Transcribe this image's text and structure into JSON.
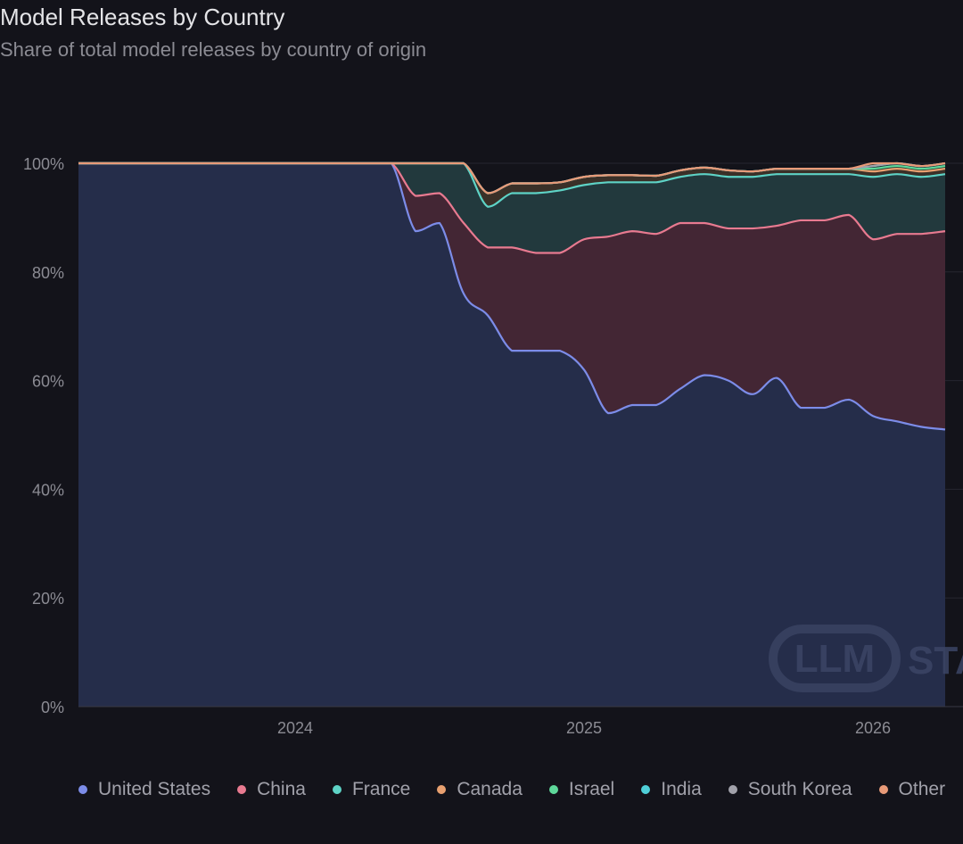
{
  "title": "Model Releases by Country",
  "subtitle": "Share of total model releases by country of origin",
  "watermark": {
    "text_a": "LLM",
    "text_b": "STATS"
  },
  "chart_data": {
    "type": "area",
    "stacked": true,
    "normalized": true,
    "title": "Model Releases by Country",
    "subtitle": "Share of total model releases by country of origin",
    "x": [
      "2023-04",
      "2023-05",
      "2023-06",
      "2023-07",
      "2023-08",
      "2023-09",
      "2023-10",
      "2023-11",
      "2023-12",
      "2024-01",
      "2024-02",
      "2024-03",
      "2024-04",
      "2024-05",
      "2024-06",
      "2024-07",
      "2024-08",
      "2024-09",
      "2024-10",
      "2024-11",
      "2024-12",
      "2025-01",
      "2025-02",
      "2025-03",
      "2025-04",
      "2025-05",
      "2025-06",
      "2025-07",
      "2025-08",
      "2025-09",
      "2025-10",
      "2025-11",
      "2025-12",
      "2026-01",
      "2026-02",
      "2026-03",
      "2026-04"
    ],
    "xticks": [
      "2024",
      "2025",
      "2026"
    ],
    "yticks": [
      "0%",
      "20%",
      "40%",
      "60%",
      "80%",
      "100%"
    ],
    "ylim": [
      0,
      100
    ],
    "grid": true,
    "legend_position": "bottom",
    "series": [
      {
        "name": "United States",
        "color": "#7c8ce8",
        "fill": "#252d4a",
        "values": [
          100,
          100,
          100,
          100,
          100,
          100,
          100,
          100,
          100,
          100,
          100,
          100,
          100,
          100,
          87.5,
          89,
          76,
          72,
          65.5,
          65.5,
          65.5,
          62,
          54,
          55.5,
          55.5,
          58.5,
          61,
          60,
          57.5,
          60.5,
          55,
          55,
          56.5,
          53.5,
          52.5,
          51.5,
          51
        ]
      },
      {
        "name": "China",
        "color": "#e87a90",
        "fill": "#432634",
        "values": [
          0,
          0,
          0,
          0,
          0,
          0,
          0,
          0,
          0,
          0,
          0,
          0,
          0,
          0,
          6.5,
          5.5,
          13,
          12.5,
          19,
          18,
          18,
          24,
          32.5,
          32,
          31.5,
          30.5,
          28,
          28,
          30.5,
          28,
          34.5,
          34.5,
          34,
          32.5,
          34.5,
          35.5,
          36.5
        ]
      },
      {
        "name": "France",
        "color": "#5ed3c6",
        "fill": "#22393d",
        "values": [
          0,
          0,
          0,
          0,
          0,
          0,
          0,
          0,
          0,
          0,
          0,
          0,
          0,
          0,
          6,
          5.5,
          11,
          7.5,
          10,
          11,
          11.5,
          10,
          10,
          9,
          9.5,
          8.5,
          9,
          9.5,
          9.5,
          9.5,
          8.5,
          8.5,
          7.5,
          11.5,
          11,
          10.5,
          10.5
        ]
      },
      {
        "name": "Canada",
        "color": "#e8a070",
        "fill": "#3a3028",
        "values": [
          0,
          0,
          0,
          0,
          0,
          0,
          0,
          0,
          0,
          0,
          0,
          0,
          0,
          0,
          0,
          0,
          0,
          2.5,
          1.8,
          1.8,
          1.5,
          1.5,
          1.3,
          1.3,
          1.2,
          1.2,
          1.2,
          1.2,
          1,
          1,
          1,
          1,
          1,
          1,
          1,
          1,
          1
        ]
      },
      {
        "name": "Israel",
        "color": "#5ed89a",
        "fill": "#1f3a30",
        "values": [
          0,
          0,
          0,
          0,
          0,
          0,
          0,
          0,
          0,
          0,
          0,
          0,
          0,
          0,
          0,
          0,
          0,
          0,
          0,
          0,
          0,
          0,
          0,
          0,
          0,
          0,
          0,
          0,
          0,
          0,
          0,
          0,
          0,
          0.5,
          0.5,
          0.5,
          0.5
        ]
      },
      {
        "name": "India",
        "color": "#4fcfd8",
        "fill": "#1f393d",
        "values": [
          0,
          0,
          0,
          0,
          0,
          0,
          0,
          0,
          0,
          0,
          0,
          0,
          0,
          0,
          0,
          0,
          0,
          0,
          0,
          0,
          0,
          0,
          0,
          0,
          0,
          0,
          0,
          0,
          0,
          0,
          0,
          0,
          0,
          0.5,
          0.5,
          0.5,
          0.5
        ]
      },
      {
        "name": "South Korea",
        "color": "#a1a1aa",
        "fill": "#2c2c33",
        "values": [
          0,
          0,
          0,
          0,
          0,
          0,
          0,
          0,
          0,
          0,
          0,
          0,
          0,
          0,
          0,
          0,
          0,
          0,
          0,
          0,
          0,
          0,
          0,
          0,
          0,
          0,
          0,
          0,
          0,
          0,
          0,
          0,
          0,
          0,
          0,
          0,
          0
        ]
      },
      {
        "name": "Other",
        "color": "#e89a78",
        "fill": "#3a2f2a",
        "values": [
          0,
          0,
          0,
          0,
          0,
          0,
          0,
          0,
          0,
          0,
          0,
          0,
          0,
          0,
          0,
          0,
          0,
          0,
          0,
          0,
          0,
          0,
          0,
          0,
          0,
          0,
          0,
          0,
          0,
          0,
          0,
          0,
          0,
          0.5,
          0,
          0,
          0
        ]
      }
    ]
  }
}
